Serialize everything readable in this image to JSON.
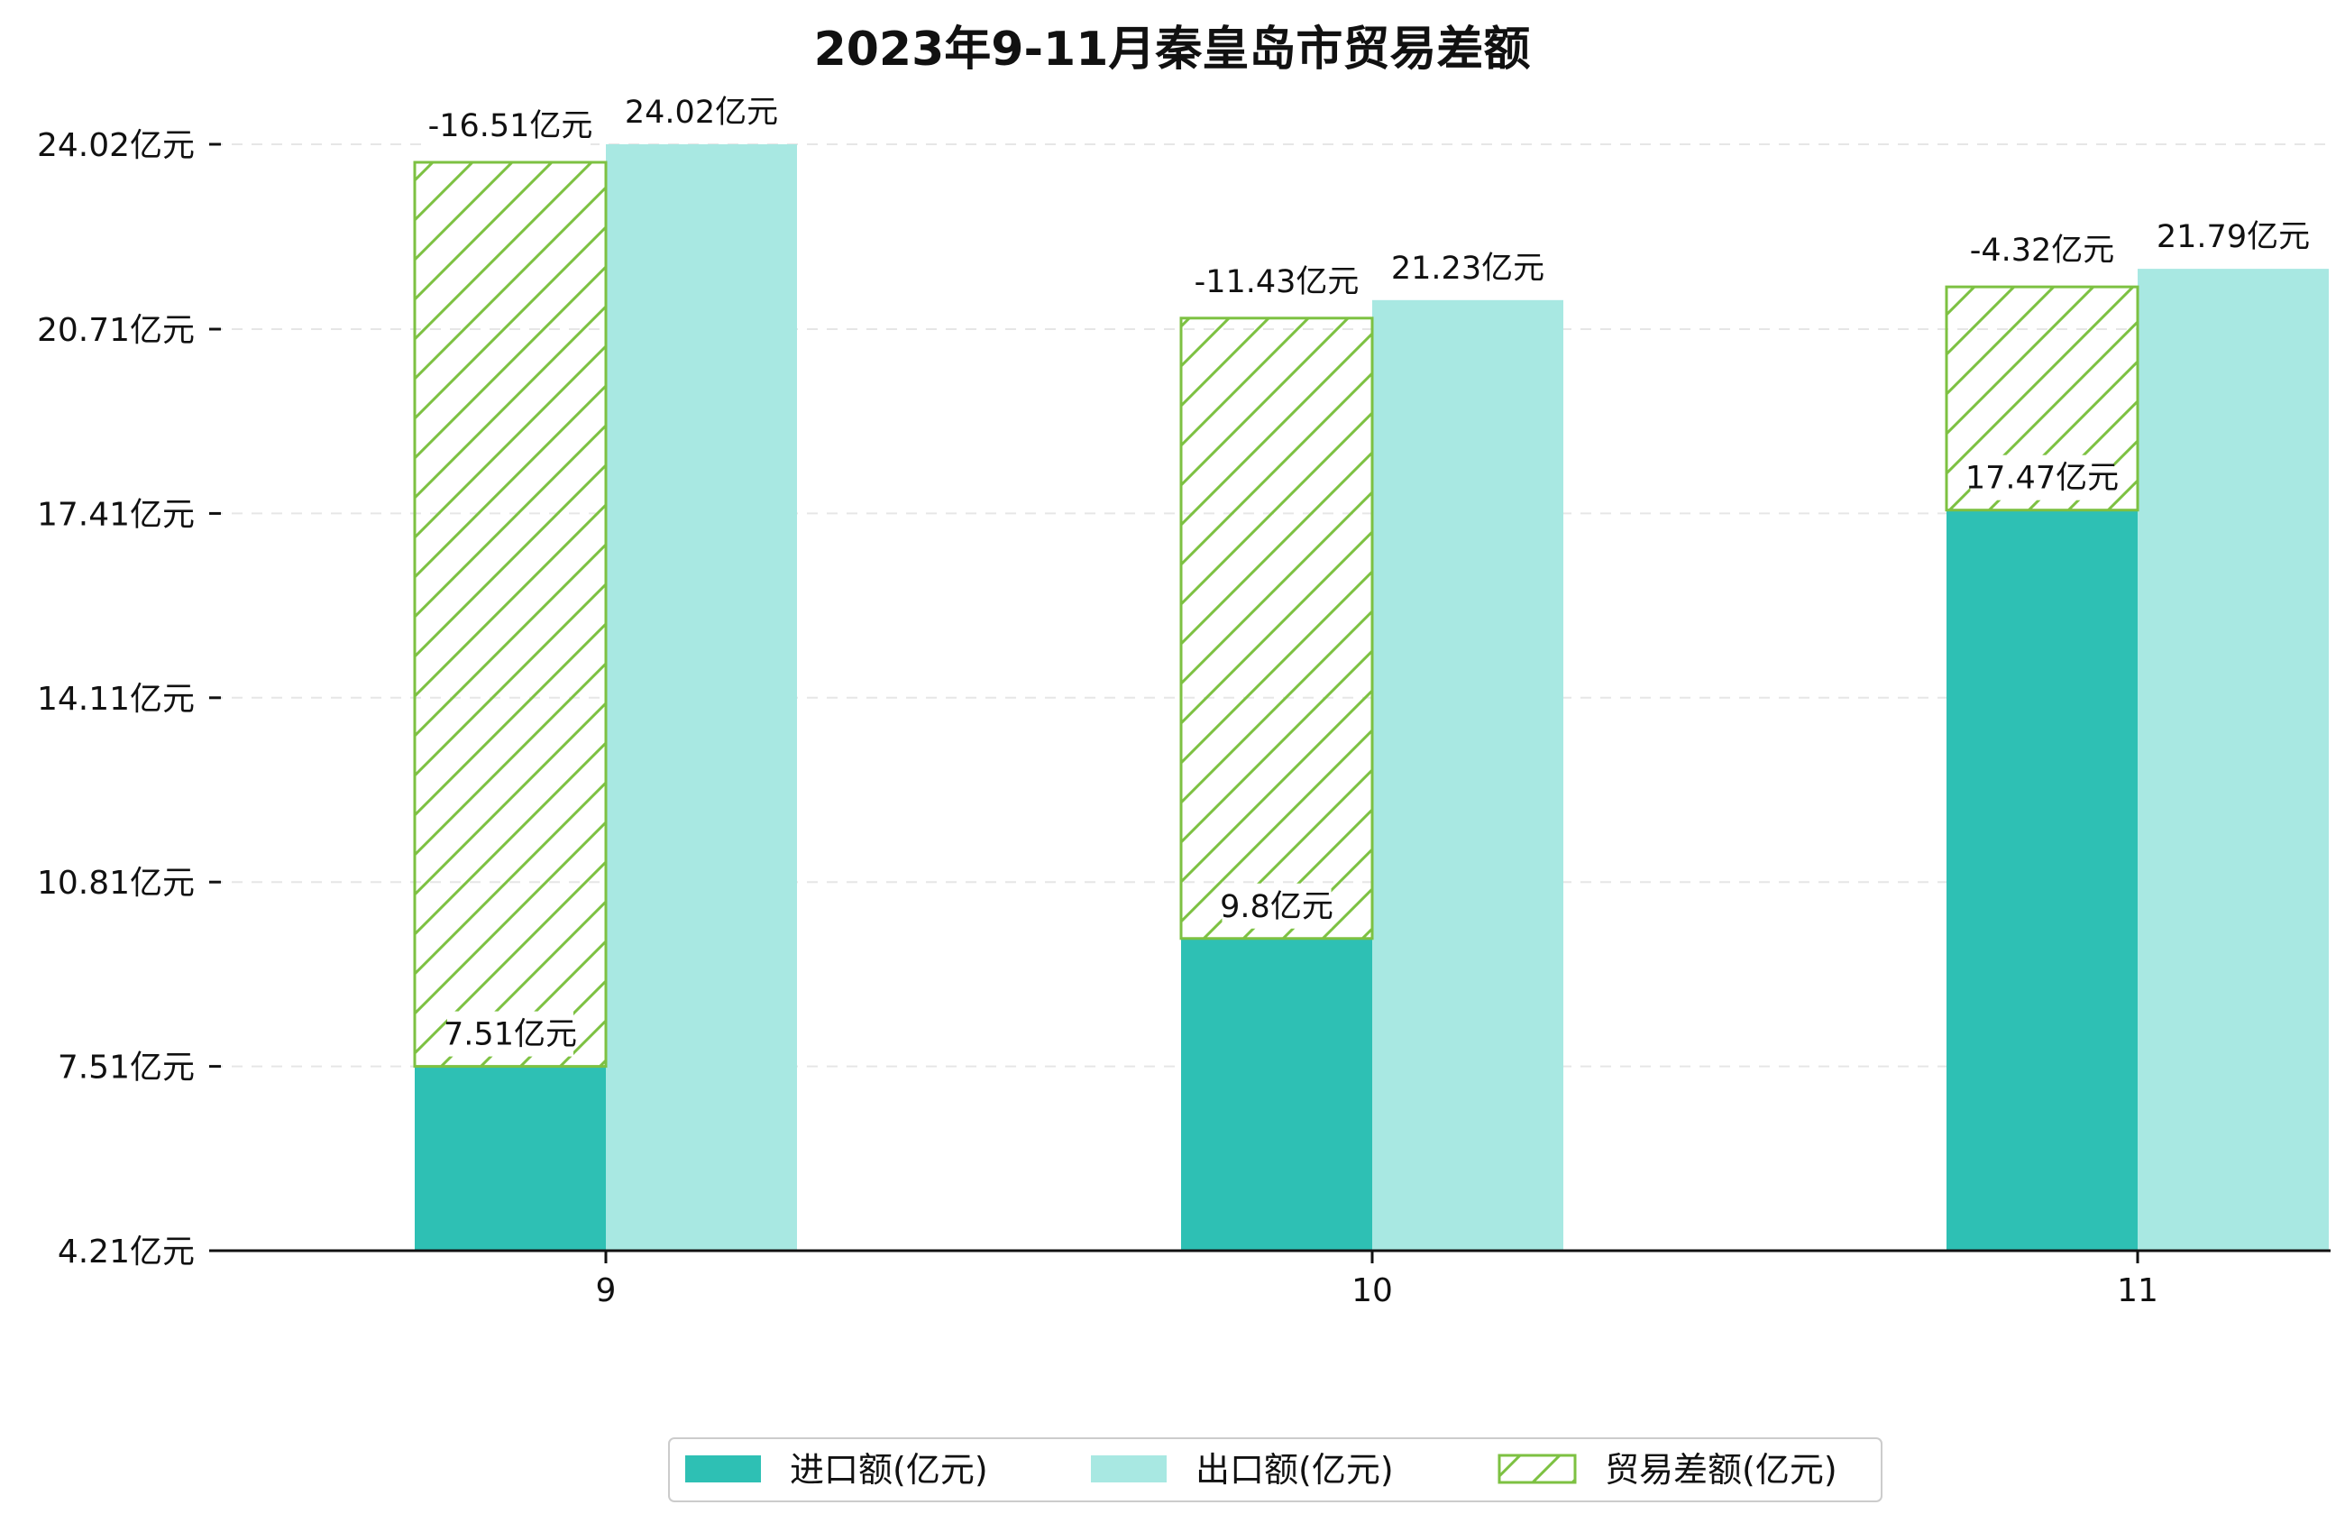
{
  "chart_data": {
    "type": "bar",
    "title": "2023年9-11月秦皇岛市贸易差额",
    "xlabel": "",
    "ylabel": "",
    "categories": [
      "9",
      "10",
      "11"
    ],
    "ylim": [
      4.21,
      24.02
    ],
    "yticks": [
      4.21,
      7.51,
      10.81,
      14.11,
      17.41,
      20.71,
      24.02
    ],
    "ytick_labels": [
      "4.21亿元",
      "7.51亿元",
      "10.81亿元",
      "14.11亿元",
      "17.41亿元",
      "20.71亿元",
      "24.02亿元"
    ],
    "series": [
      {
        "name": "进口额(亿元)",
        "values": [
          7.51,
          9.8,
          17.47
        ],
        "labels": [
          "7.51亿元",
          "9.8亿元",
          "17.47亿元"
        ],
        "color": "#2ec0b4"
      },
      {
        "name": "出口额(亿元)",
        "values": [
          24.02,
          21.23,
          21.79
        ],
        "labels": [
          "24.02亿元",
          "21.23亿元",
          "21.79亿元"
        ],
        "color": "#a8e8e2"
      },
      {
        "name": "贸易差额(亿元)",
        "values": [
          -16.51,
          -11.43,
          -4.32
        ],
        "labels": [
          "-16.51亿元",
          "-11.43亿元",
          "-4.32亿元"
        ],
        "color": "#7dc142",
        "pattern": "hatch"
      }
    ],
    "grid": true,
    "legend_position": "bottom-center"
  }
}
